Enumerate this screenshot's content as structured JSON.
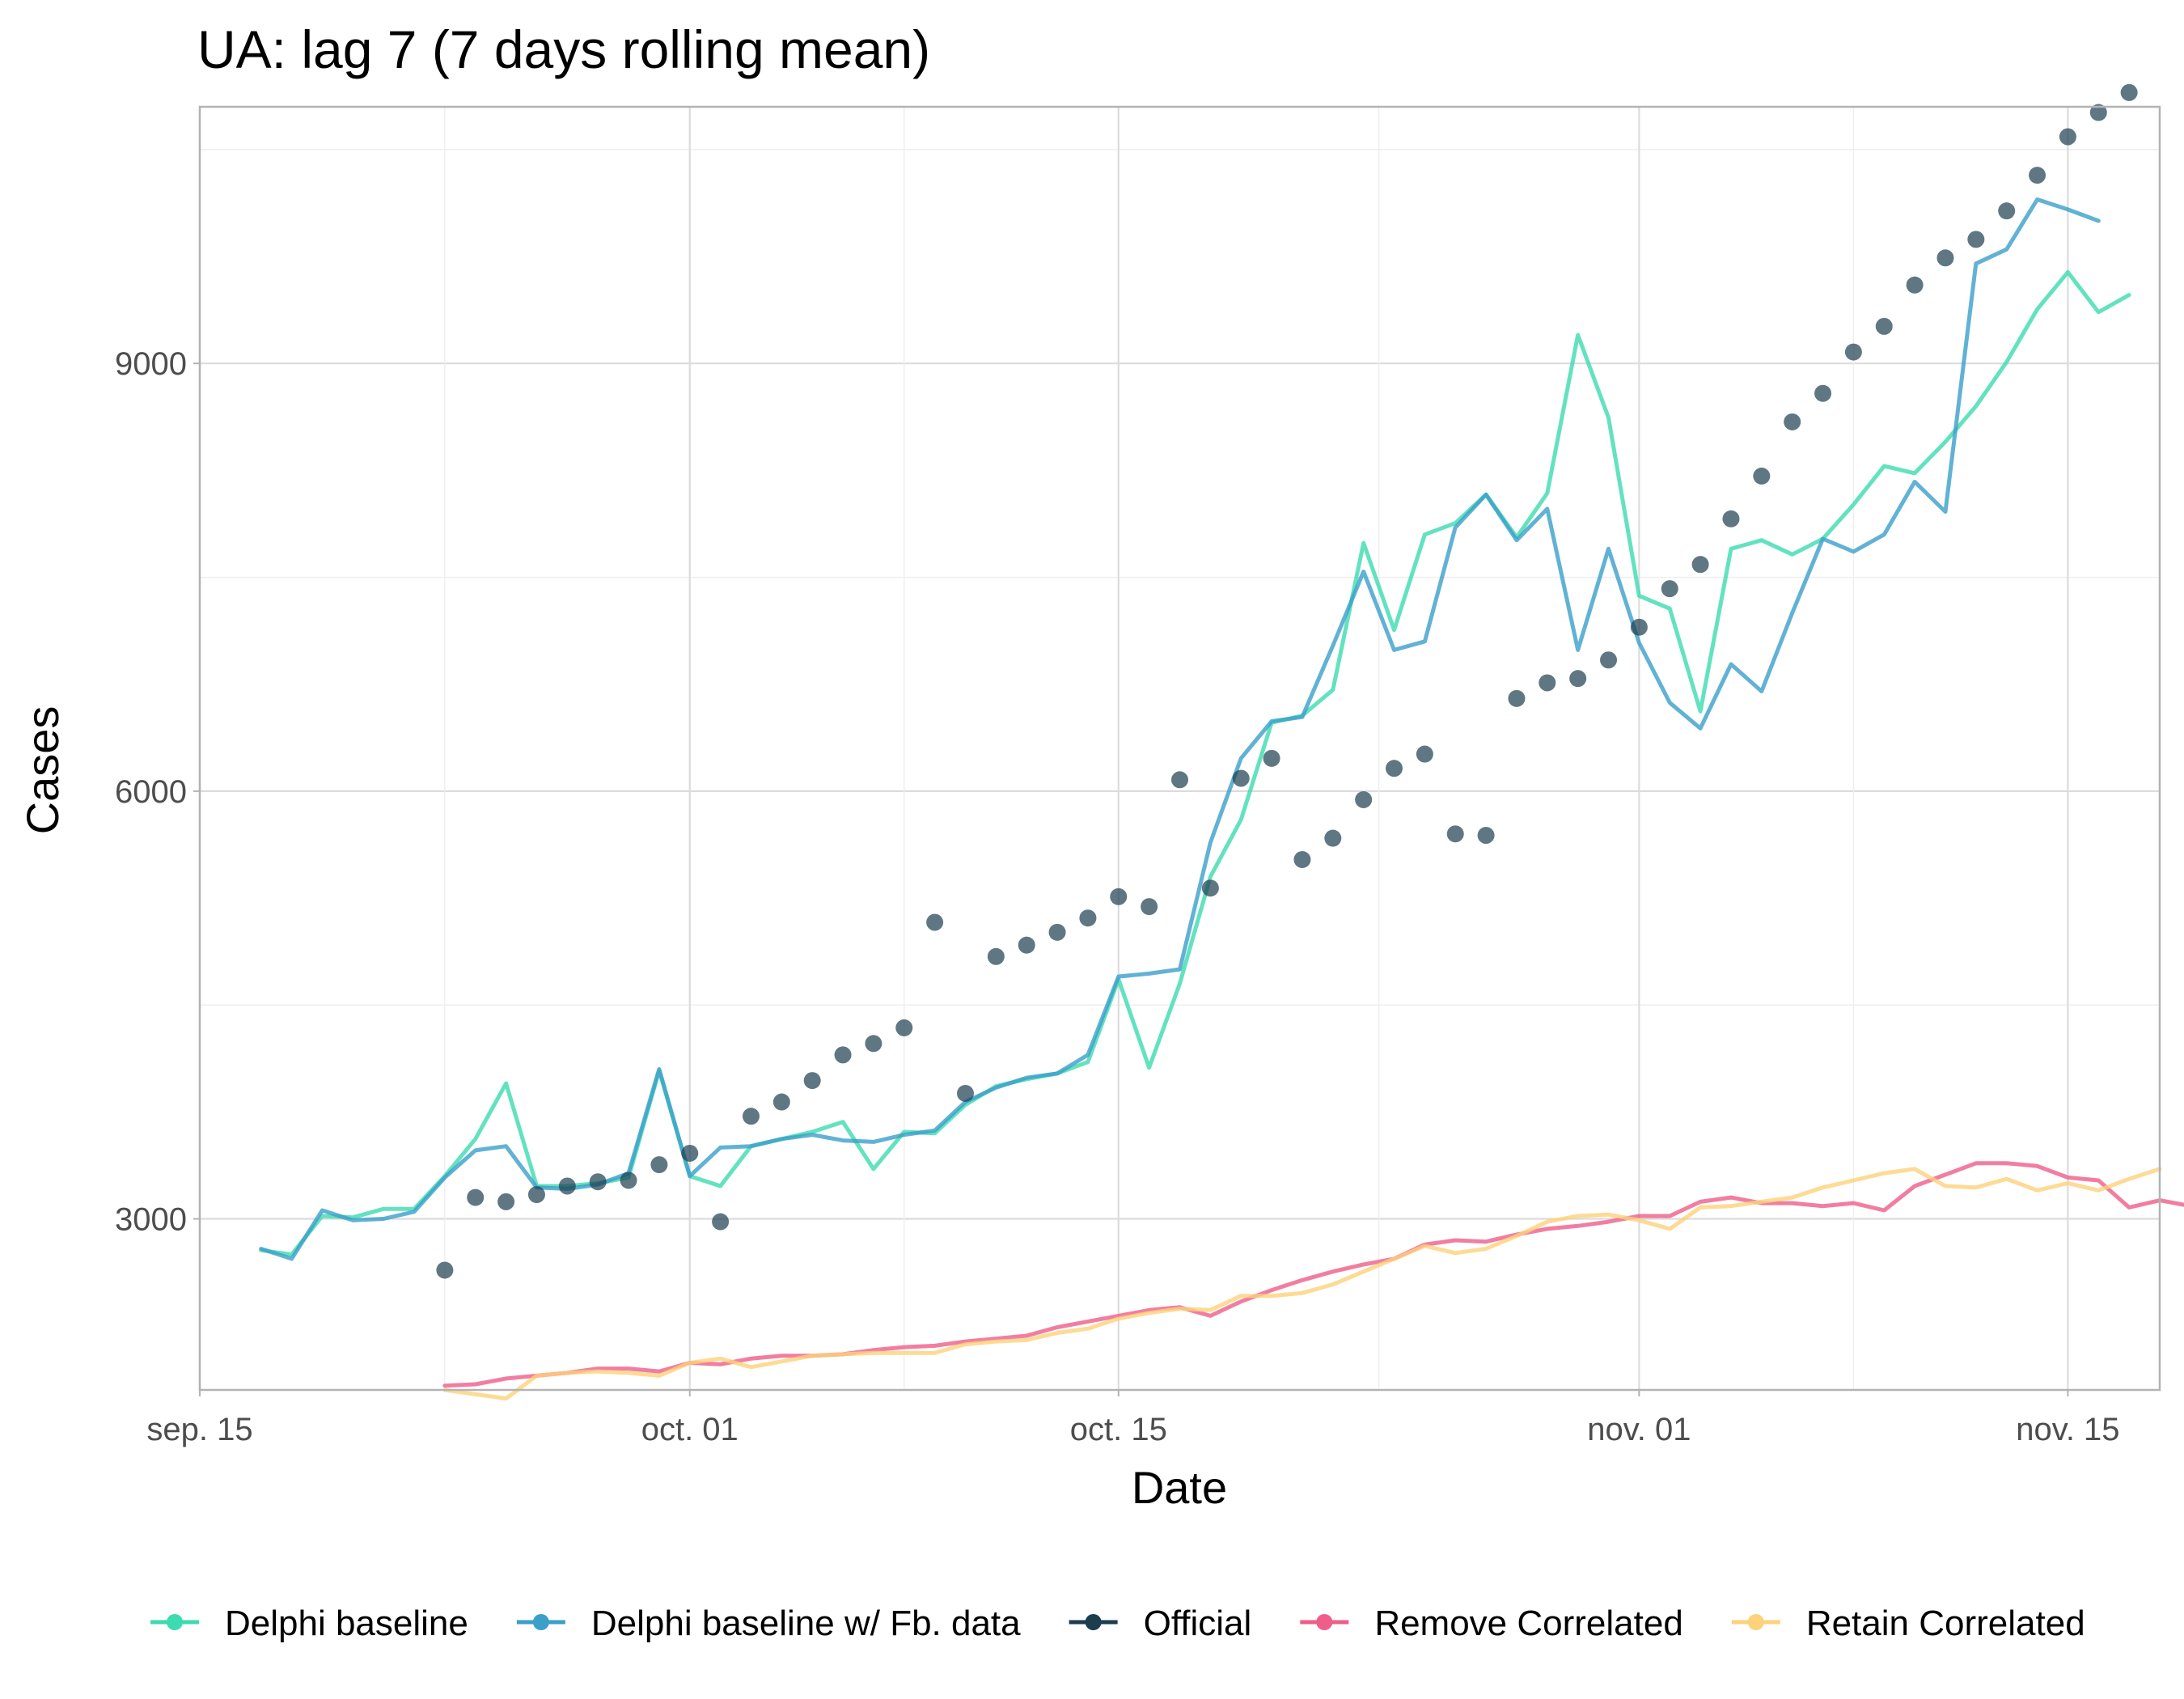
{
  "chart_data": {
    "type": "line",
    "title": "UA: lag 7 (7 days rolling mean)",
    "xlabel": "Date",
    "ylabel": "Cases",
    "x_ticks": [
      "sep. 15",
      "oct. 01",
      "oct. 15",
      "nov. 01",
      "nov. 15"
    ],
    "y_ticks": [
      "3000",
      "6000",
      "9000"
    ],
    "xlim": [
      "2020-09-15",
      "2020-11-18"
    ],
    "ylim": [
      1800,
      10800
    ],
    "grid": true,
    "legend_position": "bottom",
    "series": [
      {
        "name": "Delphi baseline",
        "kind": "line",
        "color": "#3cdbb0",
        "start": "2020-09-17",
        "values": [
          2780,
          2750,
          3020,
          3010,
          3070,
          3070,
          3300,
          3560,
          3950,
          3230,
          3230,
          3250,
          3290,
          4040,
          3300,
          3230,
          3510,
          3560,
          3610,
          3680,
          3350,
          3610,
          3600,
          3800,
          3930,
          3980,
          4020,
          4100,
          4680,
          4060,
          4650,
          5400,
          5800,
          6480,
          6530,
          6710,
          7740,
          7130,
          7800,
          7880,
          8080,
          7780,
          8090,
          9200,
          8620,
          7370,
          7280,
          6560,
          7700,
          7760,
          7660,
          7770,
          8010,
          8280,
          8230,
          8450,
          8700,
          9010,
          9380,
          9640,
          9360,
          9480
        ]
      },
      {
        "name": "Delphi baseline w/ Fb. data",
        "kind": "line",
        "color": "#3a9fc9",
        "start": "2020-09-17",
        "values": [
          2790,
          2720,
          3060,
          2990,
          3000,
          3050,
          3290,
          3480,
          3510,
          3220,
          3210,
          3240,
          3320,
          4050,
          3300,
          3500,
          3510,
          3560,
          3590,
          3550,
          3540,
          3590,
          3620,
          3820,
          3920,
          3990,
          4020,
          4150,
          4700,
          4720,
          4750,
          5640,
          6230,
          6490,
          6520,
          7020,
          7540,
          6990,
          7050,
          7850,
          8080,
          7760,
          7980,
          6990,
          7700,
          7040,
          6620,
          6440,
          6890,
          6700,
          7250,
          7770,
          7680,
          7800,
          8170,
          7960,
          9700,
          9800,
          10150,
          10080,
          10000
        ]
      },
      {
        "name": "Official",
        "kind": "points",
        "color": "#1b3d4e",
        "start": "2020-09-23",
        "values": [
          2640,
          3150,
          3120,
          3170,
          3230,
          3260,
          3270,
          3380,
          3460,
          2980,
          3720,
          3820,
          3970,
          4150,
          4230,
          4340,
          5080,
          3880,
          4840,
          4920,
          5010,
          5110,
          5260,
          5190,
          6080,
          5320,
          6090,
          6230,
          5520,
          5670,
          5940,
          6160,
          6260,
          5700,
          5690,
          6650,
          6760,
          6790,
          6920,
          7150,
          7420,
          7590,
          7910,
          8210,
          8590,
          8790,
          9080,
          9260,
          9550,
          9740,
          9870,
          10070,
          10320,
          10590,
          10760,
          10900
        ]
      },
      {
        "name": "Remove Correlated",
        "kind": "line",
        "color": "#ee5e8a",
        "start": "2020-09-23",
        "values": [
          1830,
          1840,
          1880,
          1900,
          1920,
          1950,
          1950,
          1930,
          1990,
          1980,
          2020,
          2040,
          2040,
          2050,
          2080,
          2100,
          2110,
          2140,
          2160,
          2180,
          2240,
          2280,
          2320,
          2360,
          2380,
          2320,
          2420,
          2500,
          2570,
          2630,
          2680,
          2720,
          2820,
          2850,
          2840,
          2890,
          2930,
          2950,
          2980,
          3020,
          3020,
          3120,
          3150,
          3110,
          3110,
          3090,
          3110,
          3060,
          3230,
          3310,
          3390,
          3390,
          3370,
          3290,
          3270,
          3080,
          3130,
          3090,
          3180
        ]
      },
      {
        "name": "Retain Correlated",
        "kind": "line",
        "color": "#fdd27a",
        "start": "2020-09-23",
        "values": [
          1800,
          1770,
          1740,
          1900,
          1920,
          1930,
          1920,
          1900,
          1990,
          2020,
          1960,
          2000,
          2040,
          2050,
          2060,
          2060,
          2060,
          2120,
          2140,
          2150,
          2200,
          2230,
          2300,
          2340,
          2370,
          2360,
          2460,
          2460,
          2480,
          2540,
          2630,
          2720,
          2810,
          2760,
          2790,
          2880,
          2980,
          3020,
          3030,
          2990,
          2930,
          3080,
          3090,
          3120,
          3150,
          3220,
          3270,
          3320,
          3350,
          3230,
          3220,
          3280,
          3200,
          3250,
          3200,
          3280,
          3350
        ]
      }
    ]
  },
  "legend": {
    "items": [
      {
        "label": "Delphi baseline",
        "color": "#3cdbb0"
      },
      {
        "label": "Delphi baseline w/ Fb. data",
        "color": "#3a9fc9"
      },
      {
        "label": "Official",
        "color": "#1b3d4e"
      },
      {
        "label": "Remove Correlated",
        "color": "#ee5e8a"
      },
      {
        "label": "Retain Correlated",
        "color": "#fdd27a"
      }
    ]
  }
}
